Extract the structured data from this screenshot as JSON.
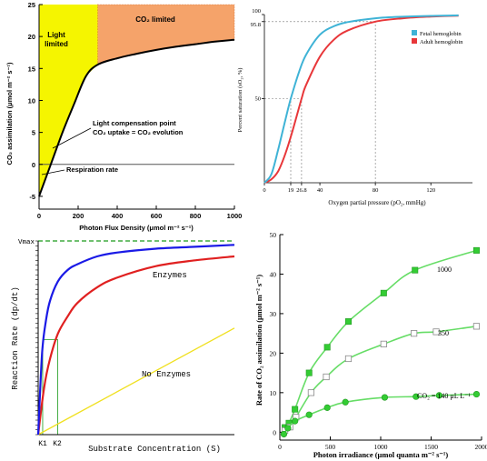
{
  "chart_data": [
    {
      "type": "line",
      "xlabel": "Photon Flux Density  (μmol m⁻² s⁻¹)",
      "ylabel": "CO₂ assimilation (μmol m⁻² s⁻¹)",
      "xlim": [
        0,
        1000
      ],
      "ylim": [
        -7,
        25
      ],
      "xticks": [
        "0",
        "200",
        "400",
        "600",
        "800",
        "1000"
      ],
      "yticks": [
        "-5",
        "0",
        "5",
        "10",
        "15",
        "20",
        "25"
      ],
      "regions": [
        {
          "label_line1": "Light",
          "label_line2": "limited",
          "x": [
            0,
            300
          ],
          "color": "#f5f500"
        },
        {
          "label": "CO₂ limited",
          "x": [
            300,
            1000
          ],
          "color": "#f5a36a"
        }
      ],
      "annotations": {
        "compensation_line1": "Light compensation point",
        "compensation_line2": "CO₂ uptake = CO₂ evolution",
        "respiration": "Respiration rate"
      },
      "series": [
        {
          "x": [
            0,
            60,
            120,
            180,
            240,
            300,
            400,
            500,
            600,
            700,
            800,
            900,
            1000
          ],
          "y": [
            -5,
            0,
            5,
            9.5,
            13.8,
            15.6,
            16.6,
            17.3,
            17.9,
            18.4,
            18.8,
            19.2,
            19.5
          ]
        }
      ],
      "grid": false
    },
    {
      "type": "line",
      "xlabel": "Oxygen partial pressure (pO₂, mmHg)",
      "ylabel": "Percent saturation (sO₂, %)",
      "xlim": [
        0,
        150
      ],
      "ylim": [
        0,
        100
      ],
      "xticks": [
        "0",
        "19",
        "26.8",
        "40",
        "80",
        "120"
      ],
      "yticks": [
        "50",
        "95.8",
        "100"
      ],
      "reference_lines": [
        {
          "axis": "x",
          "value": 19
        },
        {
          "axis": "x",
          "value": 26.8
        },
        {
          "axis": "x",
          "value": 80
        },
        {
          "axis": "y",
          "value": 50
        },
        {
          "axis": "y",
          "value": 95.8
        }
      ],
      "series": [
        {
          "name": "Fetal hemoglobin",
          "color": "#3fb3d6",
          "x": [
            0,
            5,
            10,
            15,
            19,
            25,
            30,
            40,
            50,
            60,
            80,
            100,
            120,
            140
          ],
          "y": [
            0,
            5,
            20,
            37,
            50,
            66,
            76,
            88,
            93,
            95.5,
            97.8,
            98.7,
            99.2,
            99.5
          ]
        },
        {
          "name": "Adult hemoglobin",
          "color": "#e8373a",
          "x": [
            0,
            5,
            10,
            15,
            20,
            26.8,
            30,
            40,
            50,
            60,
            80,
            100,
            120,
            140
          ],
          "y": [
            0,
            2,
            7,
            17,
            30,
            50,
            58,
            75,
            85,
            90.5,
            95.8,
            97.8,
            98.8,
            99.3
          ]
        }
      ],
      "legend": "top-right",
      "grid": false
    },
    {
      "type": "line",
      "xlabel": "Substrate Concentration (S)",
      "ylabel": "Reaction Rate (dp/dt)",
      "xlim": [
        0,
        100
      ],
      "ylim": [
        0,
        1
      ],
      "ytick_labels": [
        "Vmax"
      ],
      "xtick_labels": [
        "K1",
        "K2"
      ],
      "annotations": {
        "enzymes": "Enzymes",
        "no_enzymes": "No Enzymes"
      },
      "series": [
        {
          "name": "enzyme-blue",
          "color": "#1a1ae6",
          "x": [
            0,
            2,
            4,
            6,
            10,
            15,
            20,
            30,
            40,
            60,
            80,
            100
          ],
          "y": [
            0,
            0.42,
            0.59,
            0.69,
            0.79,
            0.85,
            0.88,
            0.92,
            0.94,
            0.96,
            0.97,
            0.98
          ]
        },
        {
          "name": "enzyme-red",
          "color": "#e02020",
          "x": [
            0,
            3,
            6,
            10,
            15,
            20,
            30,
            40,
            60,
            80,
            100
          ],
          "y": [
            0,
            0.24,
            0.39,
            0.52,
            0.61,
            0.68,
            0.76,
            0.81,
            0.87,
            0.9,
            0.92
          ]
        },
        {
          "name": "no-enzyme",
          "color": "#f0e020",
          "x": [
            0,
            100
          ],
          "y": [
            0,
            0.55
          ]
        }
      ],
      "vmax": 1.0,
      "grid": false
    },
    {
      "type": "line",
      "xlabel": "Photon irradiance (μmol quanta m⁻² s⁻¹)",
      "ylabel": "Rate of CO₂ assimilation (μmol m⁻² s⁻¹)",
      "xlim": [
        0,
        2000
      ],
      "ylim": [
        -2,
        50
      ],
      "xticks": [
        "0",
        "500",
        "1000",
        "1500",
        "2000"
      ],
      "yticks": [
        "0",
        "10",
        "20",
        "30",
        "40",
        "50"
      ],
      "series": [
        {
          "name": "1000",
          "marker": "filled-square",
          "color": "#33cc33",
          "x": [
            50,
            90,
            150,
            290,
            470,
            680,
            1030,
            1340,
            1950
          ],
          "y": [
            1.2,
            2.3,
            5.8,
            15.0,
            21.5,
            28.0,
            35.2,
            41.0,
            46.0
          ]
        },
        {
          "name": "350",
          "marker": "open-square",
          "color": "#33cc33",
          "x": [
            50,
            100,
            160,
            310,
            460,
            680,
            1030,
            1330,
            1550,
            1950
          ],
          "y": [
            0.4,
            1.3,
            3.8,
            10.0,
            14.0,
            18.6,
            22.3,
            25.0,
            25.4,
            26.8
          ]
        },
        {
          "name": "CO₂ = 140 μL L⁻¹",
          "marker": "filled-circle",
          "color": "#33cc33",
          "x": [
            40,
            80,
            150,
            290,
            470,
            650,
            1040,
            1350,
            1580,
            1950
          ],
          "y": [
            -0.5,
            1.0,
            2.8,
            4.4,
            6.2,
            7.6,
            8.8,
            9.0,
            9.3,
            9.6
          ]
        }
      ],
      "grid": false
    }
  ]
}
